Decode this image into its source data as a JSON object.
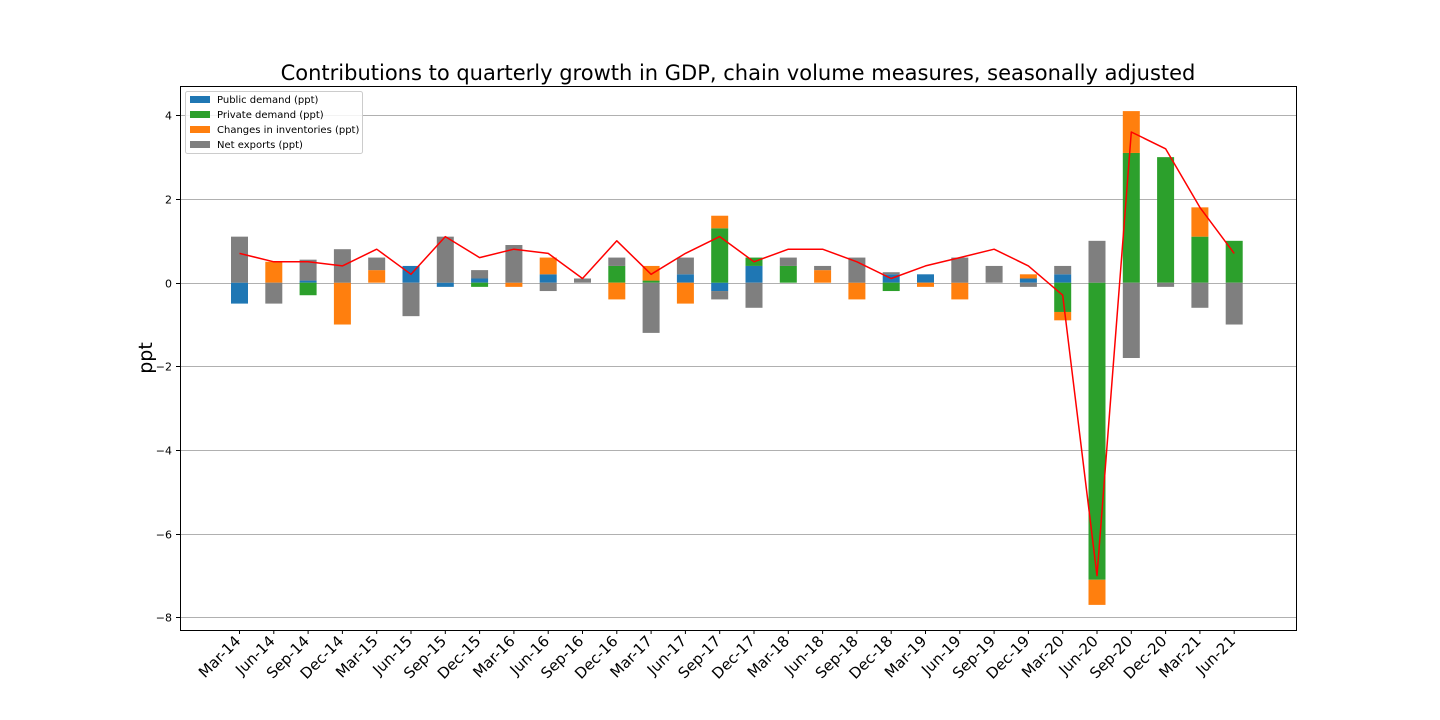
{
  "chart_data": {
    "type": "bar",
    "stacked": true,
    "title": "Contributions to quarterly growth in GDP, chain volume measures, seasonally adjusted",
    "xlabel": "",
    "ylabel": "ppt",
    "ylim": [
      -8.3,
      4.7
    ],
    "yticks": [
      4,
      2,
      0,
      -2,
      -4,
      -6,
      -8
    ],
    "ytick_labels": [
      "4",
      "2",
      "0",
      "−2",
      "−4",
      "−6",
      "−8"
    ],
    "grid": "y",
    "legend_position": "top-left",
    "categories": [
      "Mar-14",
      "Jun-14",
      "Sep-14",
      "Dec-14",
      "Mar-15",
      "Jun-15",
      "Sep-15",
      "Dec-15",
      "Mar-16",
      "Jun-16",
      "Sep-16",
      "Dec-16",
      "Mar-17",
      "Jun-17",
      "Sep-17",
      "Dec-17",
      "Mar-18",
      "Jun-18",
      "Sep-18",
      "Dec-18",
      "Mar-19",
      "Jun-19",
      "Sep-19",
      "Dec-19",
      "Mar-20",
      "Jun-20",
      "Sep-20",
      "Dec-20",
      "Mar-21",
      "Jun-21"
    ],
    "series": [
      {
        "name": "Public demand (ppt)",
        "color": "#1f77b4",
        "values": [
          -0.5,
          0.0,
          0.05,
          0.0,
          0.0,
          0.4,
          -0.1,
          0.1,
          0.0,
          0.2,
          0.0,
          0.0,
          0.0,
          0.2,
          -0.2,
          0.4,
          0.0,
          0.0,
          0.0,
          0.2,
          0.2,
          0.0,
          0.0,
          0.1,
          0.2,
          0.0,
          0.0,
          0.0,
          0.0,
          0.0
        ]
      },
      {
        "name": "Private demand (ppt)",
        "color": "#2ca02c",
        "values": [
          0.0,
          0.0,
          -0.3,
          0.0,
          0.0,
          0.0,
          0.0,
          -0.1,
          0.0,
          0.0,
          0.0,
          0.4,
          0.05,
          0.0,
          1.3,
          0.2,
          0.4,
          0.0,
          0.0,
          -0.2,
          0.0,
          0.0,
          0.0,
          0.0,
          -0.7,
          -7.1,
          3.1,
          3.0,
          1.1,
          1.0
        ]
      },
      {
        "name": "Changes in inventories (ppt)",
        "color": "#ff7f0e",
        "values": [
          0.0,
          0.5,
          0.0,
          -1.0,
          0.3,
          0.0,
          0.0,
          0.0,
          -0.1,
          0.4,
          0.0,
          -0.4,
          0.35,
          -0.5,
          0.3,
          0.0,
          0.0,
          0.3,
          -0.4,
          0.0,
          -0.1,
          -0.4,
          0.0,
          0.1,
          -0.2,
          -0.6,
          1.0,
          0.0,
          0.7,
          0.0
        ]
      },
      {
        "name": "Net exports (ppt)",
        "color": "#7f7f7f",
        "values": [
          1.1,
          -0.5,
          0.5,
          0.8,
          0.3,
          -0.8,
          1.1,
          0.2,
          0.9,
          -0.2,
          0.1,
          0.2,
          -1.2,
          0.4,
          -0.2,
          -0.6,
          0.2,
          0.1,
          0.6,
          0.05,
          0.0,
          0.6,
          0.4,
          -0.1,
          0.2,
          1.0,
          -1.8,
          -0.1,
          -0.6,
          -1.0
        ]
      }
    ],
    "line": {
      "color": "#ff0000",
      "values": [
        0.7,
        0.5,
        0.5,
        0.4,
        0.8,
        0.2,
        1.1,
        0.6,
        0.8,
        0.7,
        0.1,
        1.0,
        0.2,
        0.7,
        1.1,
        0.5,
        0.8,
        0.8,
        0.5,
        0.1,
        0.4,
        0.6,
        0.8,
        0.4,
        -0.3,
        -7.0,
        3.6,
        3.2,
        1.8,
        0.7
      ]
    }
  }
}
